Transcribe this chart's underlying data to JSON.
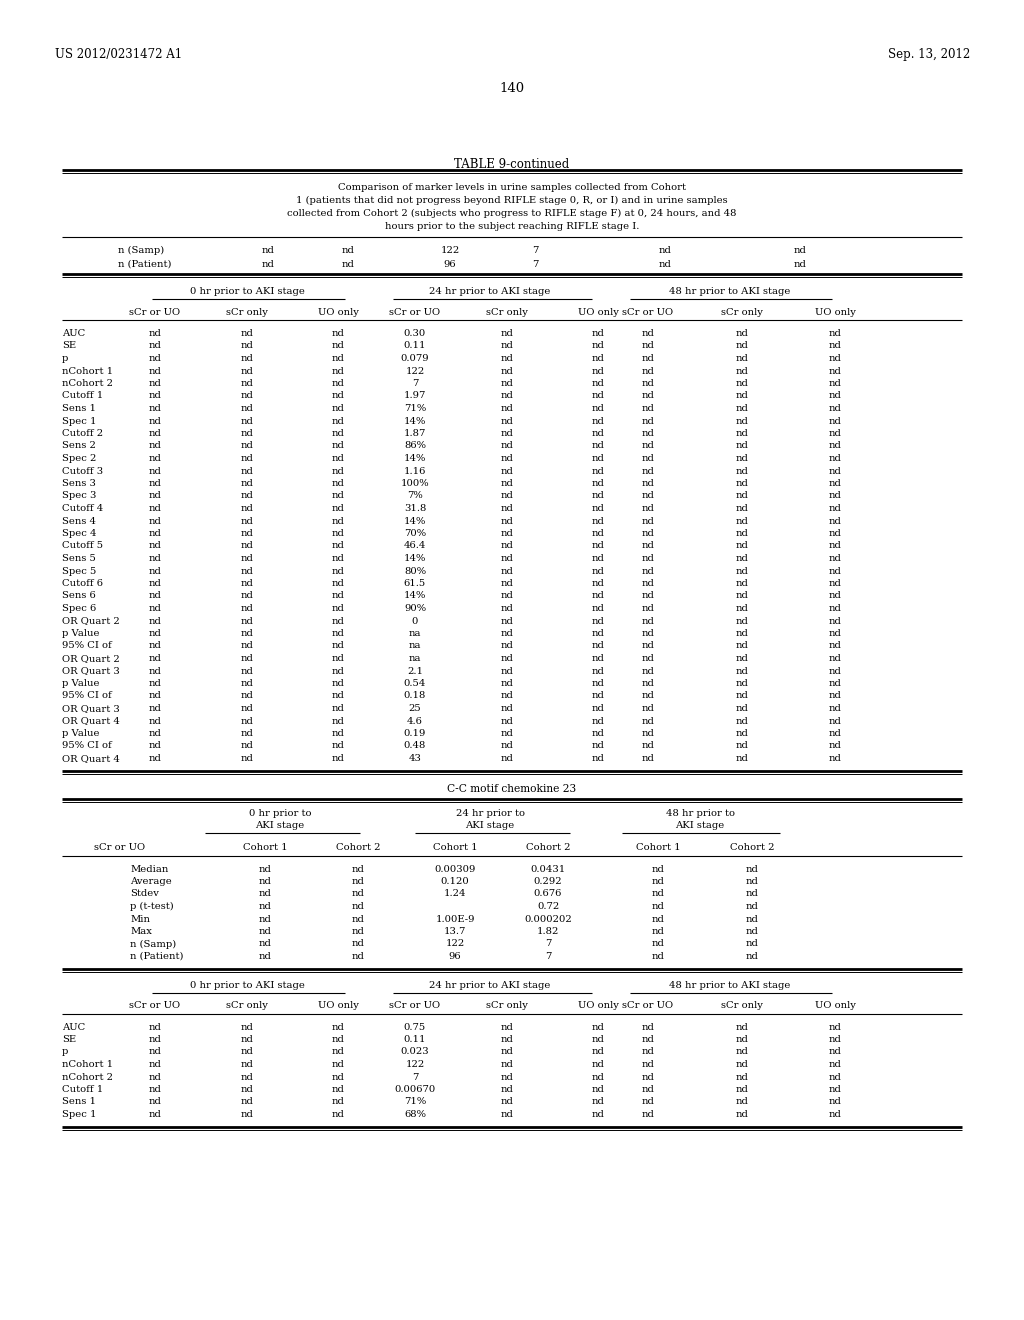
{
  "header_left": "US 2012/0231472 A1",
  "header_right": "Sep. 13, 2012",
  "page_number": "140",
  "table_title": "TABLE 9-continued",
  "table_caption_lines": [
    "Comparison of marker levels in urine samples collected from Cohort",
    "1 (patients that did not progress beyond RIFLE stage 0, R, or I) and in urine samples",
    "collected from Cohort 2 (subjects who progress to RIFLE stage F) at 0, 24 hours, and 48",
    "hours prior to the subject reaching RIFLE stage I."
  ],
  "section1_rows": [
    [
      "AUC",
      "nd",
      "nd",
      "nd",
      "0.30",
      "nd",
      "nd",
      "nd",
      "nd",
      "nd"
    ],
    [
      "SE",
      "nd",
      "nd",
      "nd",
      "0.11",
      "nd",
      "nd",
      "nd",
      "nd",
      "nd"
    ],
    [
      "p",
      "nd",
      "nd",
      "nd",
      "0.079",
      "nd",
      "nd",
      "nd",
      "nd",
      "nd"
    ],
    [
      "nCohort 1",
      "nd",
      "nd",
      "nd",
      "122",
      "nd",
      "nd",
      "nd",
      "nd",
      "nd"
    ],
    [
      "nCohort 2",
      "nd",
      "nd",
      "nd",
      "7",
      "nd",
      "nd",
      "nd",
      "nd",
      "nd"
    ],
    [
      "Cutoff 1",
      "nd",
      "nd",
      "nd",
      "1.97",
      "nd",
      "nd",
      "nd",
      "nd",
      "nd"
    ],
    [
      "Sens 1",
      "nd",
      "nd",
      "nd",
      "71%",
      "nd",
      "nd",
      "nd",
      "nd",
      "nd"
    ],
    [
      "Spec 1",
      "nd",
      "nd",
      "nd",
      "14%",
      "nd",
      "nd",
      "nd",
      "nd",
      "nd"
    ],
    [
      "Cutoff 2",
      "nd",
      "nd",
      "nd",
      "1.87",
      "nd",
      "nd",
      "nd",
      "nd",
      "nd"
    ],
    [
      "Sens 2",
      "nd",
      "nd",
      "nd",
      "86%",
      "nd",
      "nd",
      "nd",
      "nd",
      "nd"
    ],
    [
      "Spec 2",
      "nd",
      "nd",
      "nd",
      "14%",
      "nd",
      "nd",
      "nd",
      "nd",
      "nd"
    ],
    [
      "Cutoff 3",
      "nd",
      "nd",
      "nd",
      "1.16",
      "nd",
      "nd",
      "nd",
      "nd",
      "nd"
    ],
    [
      "Sens 3",
      "nd",
      "nd",
      "nd",
      "100%",
      "nd",
      "nd",
      "nd",
      "nd",
      "nd"
    ],
    [
      "Spec 3",
      "nd",
      "nd",
      "nd",
      "7%",
      "nd",
      "nd",
      "nd",
      "nd",
      "nd"
    ],
    [
      "Cutoff 4",
      "nd",
      "nd",
      "nd",
      "31.8",
      "nd",
      "nd",
      "nd",
      "nd",
      "nd"
    ],
    [
      "Sens 4",
      "nd",
      "nd",
      "nd",
      "14%",
      "nd",
      "nd",
      "nd",
      "nd",
      "nd"
    ],
    [
      "Spec 4",
      "nd",
      "nd",
      "nd",
      "70%",
      "nd",
      "nd",
      "nd",
      "nd",
      "nd"
    ],
    [
      "Cutoff 5",
      "nd",
      "nd",
      "nd",
      "46.4",
      "nd",
      "nd",
      "nd",
      "nd",
      "nd"
    ],
    [
      "Sens 5",
      "nd",
      "nd",
      "nd",
      "14%",
      "nd",
      "nd",
      "nd",
      "nd",
      "nd"
    ],
    [
      "Spec 5",
      "nd",
      "nd",
      "nd",
      "80%",
      "nd",
      "nd",
      "nd",
      "nd",
      "nd"
    ],
    [
      "Cutoff 6",
      "nd",
      "nd",
      "nd",
      "61.5",
      "nd",
      "nd",
      "nd",
      "nd",
      "nd"
    ],
    [
      "Sens 6",
      "nd",
      "nd",
      "nd",
      "14%",
      "nd",
      "nd",
      "nd",
      "nd",
      "nd"
    ],
    [
      "Spec 6",
      "nd",
      "nd",
      "nd",
      "90%",
      "nd",
      "nd",
      "nd",
      "nd",
      "nd"
    ],
    [
      "OR Quart 2",
      "nd",
      "nd",
      "nd",
      "0",
      "nd",
      "nd",
      "nd",
      "nd",
      "nd"
    ],
    [
      "p Value",
      "nd",
      "nd",
      "nd",
      "na",
      "nd",
      "nd",
      "nd",
      "nd",
      "nd"
    ],
    [
      "95% CI of",
      "nd",
      "nd",
      "nd",
      "na",
      "nd",
      "nd",
      "nd",
      "nd",
      "nd"
    ],
    [
      "OR Quart 2",
      "nd",
      "nd",
      "nd",
      "na",
      "nd",
      "nd",
      "nd",
      "nd",
      "nd"
    ],
    [
      "OR Quart 3",
      "nd",
      "nd",
      "nd",
      "2.1",
      "nd",
      "nd",
      "nd",
      "nd",
      "nd"
    ],
    [
      "p Value",
      "nd",
      "nd",
      "nd",
      "0.54",
      "nd",
      "nd",
      "nd",
      "nd",
      "nd"
    ],
    [
      "95% CI of",
      "nd",
      "nd",
      "nd",
      "0.18",
      "nd",
      "nd",
      "nd",
      "nd",
      "nd"
    ],
    [
      "OR Quart 3",
      "nd",
      "nd",
      "nd",
      "25",
      "nd",
      "nd",
      "nd",
      "nd",
      "nd"
    ],
    [
      "OR Quart 4",
      "nd",
      "nd",
      "nd",
      "4.6",
      "nd",
      "nd",
      "nd",
      "nd",
      "nd"
    ],
    [
      "p Value",
      "nd",
      "nd",
      "nd",
      "0.19",
      "nd",
      "nd",
      "nd",
      "nd",
      "nd"
    ],
    [
      "95% CI of",
      "nd",
      "nd",
      "nd",
      "0.48",
      "nd",
      "nd",
      "nd",
      "nd",
      "nd"
    ],
    [
      "OR Quart 4",
      "nd",
      "nd",
      "nd",
      "43",
      "nd",
      "nd",
      "nd",
      "nd",
      "nd"
    ]
  ],
  "section2_title": "C-C motif chemokine 23",
  "section2_cohort_rows": [
    [
      "Median",
      "nd",
      "nd",
      "0.00309",
      "0.0431",
      "nd",
      "nd"
    ],
    [
      "Average",
      "nd",
      "nd",
      "0.120",
      "0.292",
      "nd",
      "nd"
    ],
    [
      "Stdev",
      "nd",
      "nd",
      "1.24",
      "0.676",
      "nd",
      "nd"
    ],
    [
      "p (t-test)",
      "nd",
      "nd",
      "",
      "0.72",
      "nd",
      "nd"
    ],
    [
      "Min",
      "nd",
      "nd",
      "1.00E-9",
      "0.000202",
      "nd",
      "nd"
    ],
    [
      "Max",
      "nd",
      "nd",
      "13.7",
      "1.82",
      "nd",
      "nd"
    ],
    [
      "n (Samp)",
      "nd",
      "nd",
      "122",
      "7",
      "nd",
      "nd"
    ],
    [
      "n (Patient)",
      "nd",
      "nd",
      "96",
      "7",
      "nd",
      "nd"
    ]
  ],
  "section2_auc_rows": [
    [
      "AUC",
      "nd",
      "nd",
      "nd",
      "0.75",
      "nd",
      "nd",
      "nd",
      "nd",
      "nd"
    ],
    [
      "SE",
      "nd",
      "nd",
      "nd",
      "0.11",
      "nd",
      "nd",
      "nd",
      "nd",
      "nd"
    ],
    [
      "p",
      "nd",
      "nd",
      "nd",
      "0.023",
      "nd",
      "nd",
      "nd",
      "nd",
      "nd"
    ],
    [
      "nCohort 1",
      "nd",
      "nd",
      "nd",
      "122",
      "nd",
      "nd",
      "nd",
      "nd",
      "nd"
    ],
    [
      "nCohort 2",
      "nd",
      "nd",
      "nd",
      "7",
      "nd",
      "nd",
      "nd",
      "nd",
      "nd"
    ],
    [
      "Cutoff 1",
      "nd",
      "nd",
      "nd",
      "0.00670",
      "nd",
      "nd",
      "nd",
      "nd",
      "nd"
    ],
    [
      "Sens 1",
      "nd",
      "nd",
      "nd",
      "71%",
      "nd",
      "nd",
      "nd",
      "nd",
      "nd"
    ],
    [
      "Spec 1",
      "nd",
      "nd",
      "nd",
      "68%",
      "nd",
      "nd",
      "nd",
      "nd",
      "nd"
    ]
  ],
  "bg_color": "#ffffff",
  "text_color": "#000000"
}
